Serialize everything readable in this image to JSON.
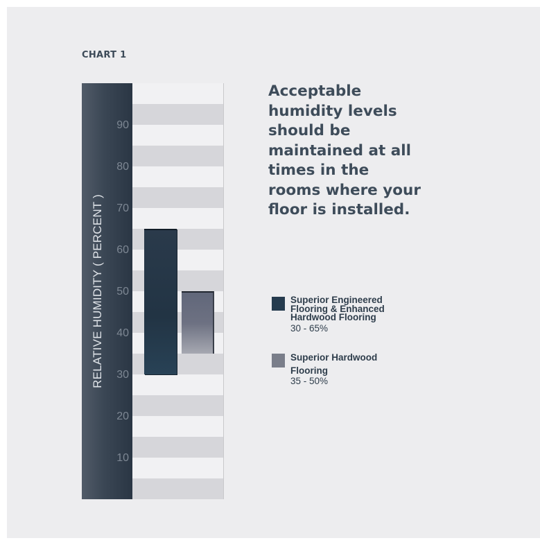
{
  "chart_label": "CHART 1",
  "headline": "Acceptable humidity levels should be maintained at all times in the rooms where your floor is installed.",
  "legend": [
    {
      "name": "Superior Engineered Flooring & Enhanced Hardwood Flooring",
      "range": "30 - 65%",
      "color": "#253b4e"
    },
    {
      "name": "Superior Hardwood Flooring",
      "range": "35 - 50%",
      "color": "#7a7e8a"
    }
  ],
  "chart_data": {
    "type": "bar",
    "ylabel": "RELATIVE HUMIDITY ( PERCENT )",
    "ylim": [
      0,
      100
    ],
    "yticks": [
      10,
      20,
      30,
      40,
      50,
      60,
      70,
      80,
      90
    ],
    "grid": "alternating bands every 5",
    "series": [
      {
        "name": "Superior Engineered Flooring & Enhanced Hardwood Flooring",
        "low": 30,
        "high": 65
      },
      {
        "name": "Superior Hardwood Flooring",
        "low": 35,
        "high": 50
      }
    ]
  }
}
